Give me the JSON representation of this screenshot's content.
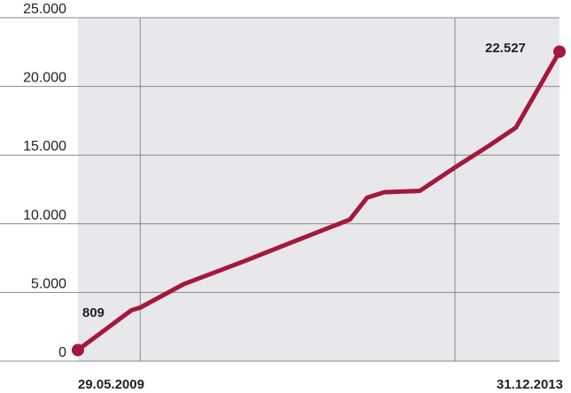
{
  "chart_data": {
    "type": "line",
    "title": "",
    "xlabel": "",
    "ylabel": "",
    "ylim": [
      0,
      25000
    ],
    "y_ticks": [
      0,
      5000,
      10000,
      15000,
      20000,
      25000
    ],
    "y_tick_labels": [
      "0",
      "5.000",
      "10.000",
      "15.000",
      "20.000",
      "25.000"
    ],
    "grid": true,
    "legend": "none",
    "x_tick_labels": [
      "29.05.2009",
      "31.12.2013"
    ],
    "series": [
      {
        "color": "#a3183c",
        "x": [
          "29.05.2009",
          "2009-12",
          "2010-01",
          "2010-06",
          "2011-01",
          "2011-07",
          "2012-01",
          "2012-03",
          "2012-05",
          "2012-09",
          "2013-01",
          "2013-05",
          "2013-08",
          "31.12.2013"
        ],
        "values": [
          809,
          3700,
          3900,
          5600,
          7300,
          8800,
          10300,
          11900,
          12300,
          12400,
          14100,
          15700,
          17000,
          22527
        ]
      }
    ],
    "annotations": [
      {
        "label": "809",
        "x": "29.05.2009",
        "y": 809
      },
      {
        "label": "22.527",
        "x": "31.12.2013",
        "y": 22527
      }
    ],
    "colors": {
      "plot_background": "#e8e7eb",
      "grid": "#888888",
      "line": "#a3183c"
    }
  }
}
